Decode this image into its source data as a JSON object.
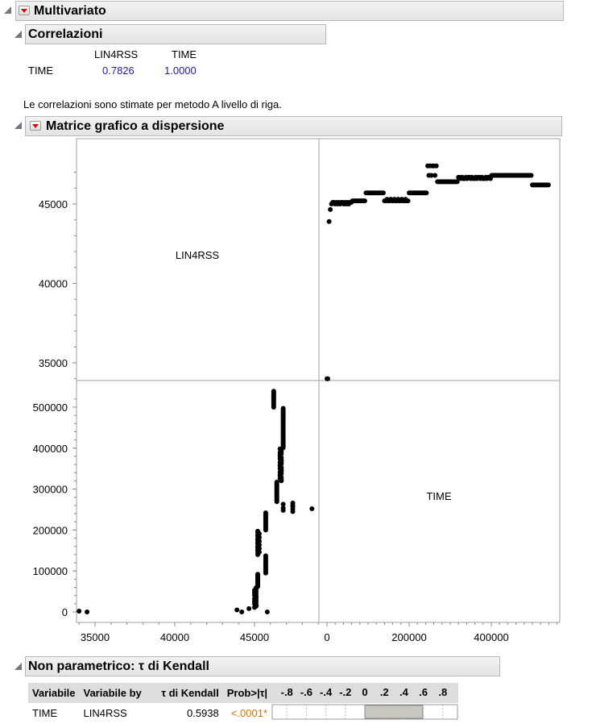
{
  "multivariate": {
    "title": "Multivariato"
  },
  "correlations": {
    "title": "Correlazioni",
    "columns": [
      "LIN4RSS",
      "TIME"
    ],
    "row_label": "TIME",
    "values": [
      "0.7826",
      "1.0000"
    ],
    "note": "Le correlazioni sono stimate per metodo A livello di riga."
  },
  "scatter_matrix": {
    "title": "Matrice grafico a dispersione",
    "var1": "LIN4RSS",
    "var2": "TIME",
    "y_ticks_top": [
      "45000",
      "40000",
      "35000"
    ],
    "y_ticks_bottom": [
      "500000",
      "400000",
      "300000",
      "200000",
      "100000",
      "0"
    ],
    "x_ticks_left": [
      "35000",
      "40000",
      "45000"
    ],
    "x_ticks_right": [
      "0",
      "200000",
      "400000"
    ]
  },
  "kendall": {
    "title": "Non parametrico: τ di Kendall",
    "headers": [
      "Variabile",
      "Variabile by",
      "τ di Kendall",
      "Prob>|τ|"
    ],
    "bar_ticks": [
      "-.8",
      "-.6",
      "-.4",
      "-.2",
      "0",
      ".2",
      ".4",
      ".6",
      ".8"
    ],
    "row": {
      "var": "TIME",
      "by": "LIN4RSS",
      "tau": "0.5938",
      "prob": "<.0001*"
    },
    "tau_value": 0.5938,
    "prob_color": "#e07000"
  }
}
